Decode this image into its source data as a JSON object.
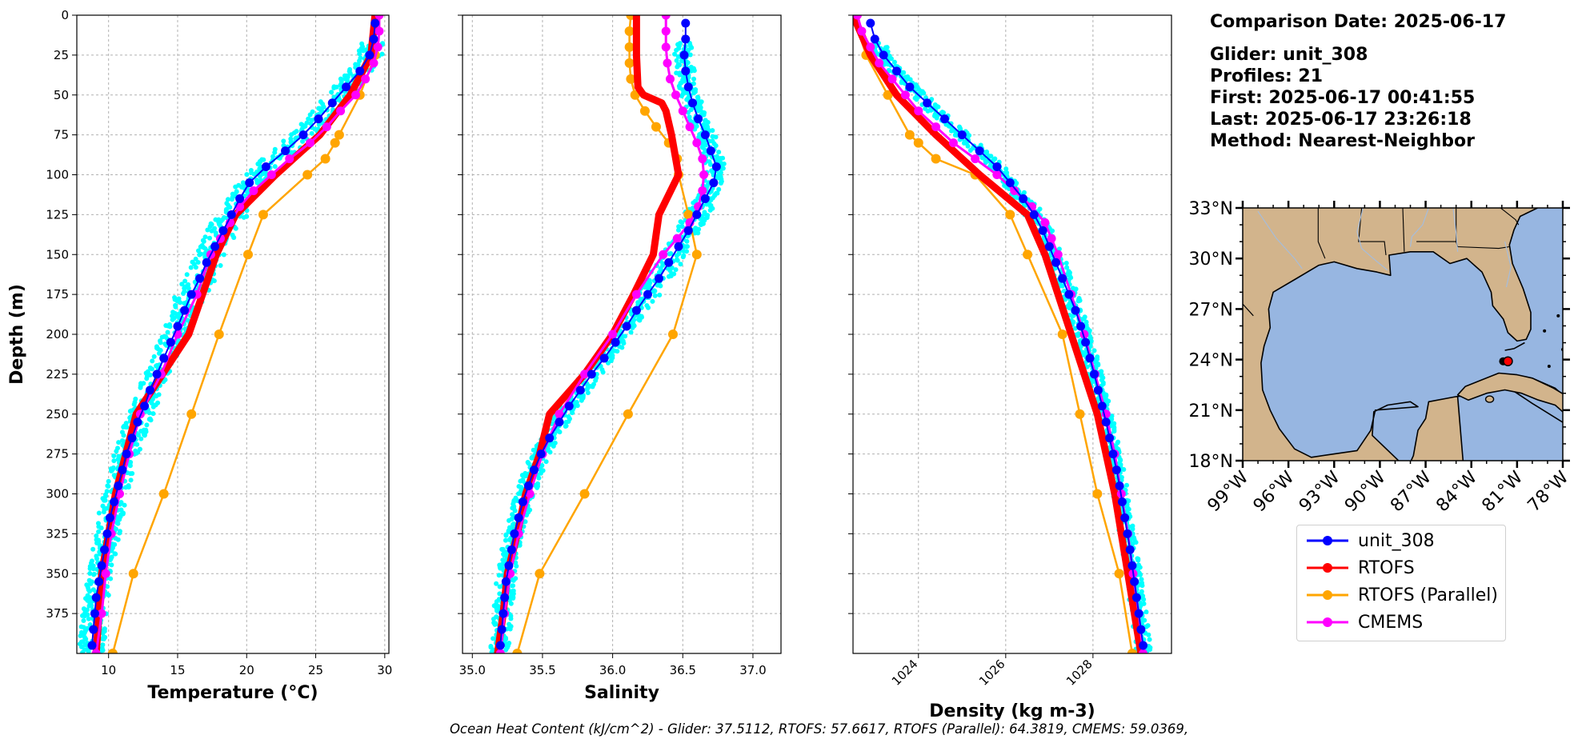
{
  "info": {
    "comparison_date": "Comparison Date: 2025-06-17",
    "glider": "Glider: unit_308",
    "profiles": "Profiles: 21",
    "first": "First: 2025-06-17 00:41:55",
    "last": "Last: 2025-06-17 23:26:18",
    "method": "Method: Nearest-Neighbor"
  },
  "footer": "Ocean Heat Content (kJ/cm^2) - Glider: 37.5112,  RTOFS: 57.6617,  RTOFS (Parallel): 64.3819,  CMEMS: 59.0369,",
  "colors": {
    "glider_raw": "#00ffff",
    "glider": "#0000ff",
    "rtofs": "#ff0000",
    "rtofs_parallel": "#ffa500",
    "cmems": "#ff00ff",
    "land": "#d2b48c",
    "ocean": "#97b6e1",
    "station": "#ff0000"
  },
  "legend": [
    {
      "label": "unit_308",
      "color": "#0000ff"
    },
    {
      "label": "RTOFS",
      "color": "#ff0000"
    },
    {
      "label": "RTOFS (Parallel)",
      "color": "#ffa500"
    },
    {
      "label": "CMEMS",
      "color": "#ff00ff"
    }
  ],
  "chart_data": [
    {
      "type": "line",
      "xlabel": "Temperature (°C)",
      "ylabel": "Depth (m)",
      "xlim": [
        7.7,
        30.3
      ],
      "ylim": [
        400,
        0
      ],
      "x_ticks": [
        10,
        15,
        20,
        25,
        30
      ],
      "y_ticks": [
        0,
        25,
        50,
        75,
        100,
        125,
        150,
        175,
        200,
        225,
        250,
        275,
        300,
        325,
        350,
        375
      ],
      "grid": true,
      "series": [
        {
          "name": "unit_308",
          "depth": [
            5,
            15,
            25,
            35,
            45,
            55,
            65,
            75,
            85,
            95,
            105,
            115,
            125,
            135,
            145,
            155,
            165,
            175,
            185,
            195,
            205,
            215,
            225,
            235,
            245,
            255,
            265,
            275,
            285,
            295,
            305,
            315,
            325,
            335,
            345,
            355,
            365,
            375,
            385,
            395
          ],
          "x": [
            29.3,
            29.2,
            28.9,
            28.2,
            27.2,
            26.2,
            25.2,
            24.1,
            22.8,
            21.4,
            20.2,
            19.5,
            18.9,
            18.3,
            17.7,
            17.1,
            16.6,
            16.0,
            15.5,
            15.0,
            14.5,
            14.0,
            13.5,
            13.0,
            12.6,
            12.1,
            11.7,
            11.3,
            11.0,
            10.7,
            10.4,
            10.1,
            9.9,
            9.7,
            9.5,
            9.3,
            9.1,
            9.0,
            8.9,
            8.8
          ]
        },
        {
          "name": "RTOFS",
          "depth": [
            0,
            25,
            50,
            75,
            100,
            125,
            150,
            200,
            250,
            300,
            350,
            400
          ],
          "x": [
            29.3,
            29.0,
            27.5,
            25.3,
            22.1,
            19.2,
            17.8,
            15.8,
            12.0,
            10.5,
            9.5,
            9.1
          ]
        },
        {
          "name": "RTOFS (Parallel)",
          "depth": [
            0,
            25,
            50,
            75,
            80,
            90,
            100,
            125,
            150,
            200,
            250,
            300,
            350,
            400
          ],
          "x": [
            29.4,
            29.3,
            28.2,
            26.7,
            26.4,
            25.7,
            24.4,
            21.2,
            20.1,
            18.0,
            16.0,
            14.0,
            11.8,
            10.3
          ]
        },
        {
          "name": "CMEMS",
          "depth": [
            0,
            10,
            20,
            30,
            40,
            50,
            60,
            70,
            80,
            90,
            100,
            110,
            120,
            130,
            140,
            150,
            175,
            200,
            225,
            250,
            275,
            300,
            325,
            350,
            375,
            400
          ],
          "x": [
            29.6,
            29.6,
            29.5,
            29.2,
            28.6,
            27.9,
            26.8,
            25.8,
            24.6,
            23.1,
            21.8,
            20.5,
            19.5,
            18.8,
            18.1,
            17.4,
            16.4,
            15.0,
            13.8,
            12.3,
            11.5,
            10.8,
            10.2,
            9.8,
            9.5,
            9.1
          ]
        }
      ]
    },
    {
      "type": "line",
      "xlabel": "Salinity",
      "ylim": [
        400,
        0
      ],
      "xlim": [
        34.93,
        37.2
      ],
      "x_ticks": [
        35.0,
        35.5,
        36.0,
        36.5,
        37.0
      ],
      "grid": true,
      "series": [
        {
          "name": "unit_308",
          "depth": [
            5,
            15,
            25,
            35,
            45,
            55,
            65,
            75,
            85,
            95,
            105,
            115,
            125,
            135,
            145,
            155,
            165,
            175,
            185,
            195,
            205,
            215,
            225,
            235,
            245,
            255,
            265,
            275,
            285,
            295,
            305,
            315,
            325,
            335,
            345,
            355,
            365,
            375,
            385,
            395
          ],
          "x": [
            36.52,
            36.52,
            36.51,
            36.52,
            36.54,
            36.57,
            36.61,
            36.66,
            36.7,
            36.74,
            36.72,
            36.66,
            36.6,
            36.54,
            36.47,
            36.4,
            36.33,
            36.25,
            36.17,
            36.1,
            36.02,
            35.94,
            35.85,
            35.77,
            35.69,
            35.62,
            35.55,
            35.49,
            35.44,
            35.4,
            35.36,
            35.33,
            35.3,
            35.28,
            35.26,
            35.24,
            35.23,
            35.22,
            35.21,
            35.2
          ]
        },
        {
          "name": "RTOFS",
          "depth": [
            0,
            10,
            25,
            45,
            50,
            55,
            60,
            75,
            100,
            125,
            150,
            175,
            200,
            225,
            250,
            275,
            300,
            325,
            350,
            375,
            400
          ],
          "x": [
            36.17,
            36.17,
            36.17,
            36.18,
            36.22,
            36.35,
            36.38,
            36.42,
            36.47,
            36.33,
            36.29,
            36.15,
            36.0,
            35.8,
            35.55,
            35.48,
            35.38,
            35.32,
            35.25,
            35.22,
            35.18
          ]
        },
        {
          "name": "RTOFS (Parallel)",
          "depth": [
            0,
            10,
            20,
            30,
            40,
            50,
            60,
            70,
            80,
            90,
            100,
            125,
            150,
            200,
            250,
            300,
            350,
            400
          ],
          "x": [
            36.13,
            36.12,
            36.12,
            36.12,
            36.13,
            36.16,
            36.23,
            36.31,
            36.4,
            36.46,
            36.47,
            36.54,
            36.6,
            36.43,
            36.11,
            35.8,
            35.48,
            35.32
          ]
        },
        {
          "name": "CMEMS",
          "depth": [
            0,
            10,
            20,
            30,
            40,
            50,
            60,
            70,
            80,
            90,
            100,
            110,
            120,
            130,
            140,
            150,
            175,
            200,
            225,
            250,
            275,
            300,
            325,
            350,
            375,
            400
          ],
          "x": [
            36.38,
            36.38,
            36.38,
            36.39,
            36.41,
            36.45,
            36.5,
            36.55,
            36.6,
            36.64,
            36.65,
            36.64,
            36.61,
            36.55,
            36.46,
            36.36,
            36.17,
            36.0,
            35.8,
            35.62,
            35.5,
            35.41,
            35.33,
            35.27,
            35.23,
            35.2
          ]
        }
      ]
    },
    {
      "type": "line",
      "xlabel": "Density (kg m-3)",
      "ylim": [
        400,
        0
      ],
      "xlim": [
        1022.5,
        1029.8
      ],
      "x_ticks": [
        1024,
        1026,
        1028
      ],
      "grid": true,
      "series": [
        {
          "name": "unit_308",
          "depth": [
            5,
            15,
            25,
            35,
            45,
            55,
            65,
            75,
            85,
            95,
            105,
            115,
            125,
            135,
            145,
            155,
            165,
            175,
            185,
            195,
            205,
            215,
            225,
            235,
            245,
            255,
            265,
            275,
            285,
            295,
            305,
            315,
            325,
            335,
            345,
            355,
            365,
            375,
            385,
            395
          ],
          "x": [
            1022.9,
            1023.0,
            1023.2,
            1023.5,
            1023.8,
            1024.2,
            1024.6,
            1025.0,
            1025.4,
            1025.8,
            1026.1,
            1026.4,
            1026.65,
            1026.85,
            1027.0,
            1027.15,
            1027.3,
            1027.45,
            1027.6,
            1027.72,
            1027.83,
            1027.93,
            1028.03,
            1028.12,
            1028.21,
            1028.3,
            1028.38,
            1028.46,
            1028.54,
            1028.61,
            1028.67,
            1028.73,
            1028.79,
            1028.85,
            1028.9,
            1028.95,
            1029.0,
            1029.05,
            1029.1,
            1029.15
          ]
        },
        {
          "name": "RTOFS",
          "depth": [
            0,
            25,
            50,
            75,
            100,
            125,
            150,
            200,
            250,
            300,
            350,
            400
          ],
          "x": [
            1022.5,
            1022.9,
            1023.5,
            1024.4,
            1025.4,
            1026.5,
            1026.9,
            1027.5,
            1028.1,
            1028.5,
            1028.8,
            1029.1
          ]
        },
        {
          "name": "RTOFS (Parallel)",
          "depth": [
            0,
            25,
            50,
            75,
            80,
            90,
            100,
            125,
            150,
            200,
            250,
            300,
            350,
            400
          ],
          "x": [
            1022.5,
            1022.8,
            1023.3,
            1023.8,
            1024.0,
            1024.4,
            1025.3,
            1026.1,
            1026.5,
            1027.3,
            1027.7,
            1028.1,
            1028.6,
            1028.9
          ]
        },
        {
          "name": "CMEMS",
          "depth": [
            0,
            10,
            20,
            30,
            40,
            50,
            60,
            70,
            80,
            90,
            100,
            110,
            120,
            130,
            140,
            150,
            175,
            200,
            225,
            250,
            275,
            300,
            325,
            350,
            375,
            400
          ],
          "x": [
            1022.6,
            1022.7,
            1022.9,
            1023.1,
            1023.4,
            1023.7,
            1024.0,
            1024.4,
            1024.8,
            1025.3,
            1025.8,
            1026.2,
            1026.6,
            1026.9,
            1027.05,
            1027.2,
            1027.5,
            1027.8,
            1028.05,
            1028.3,
            1028.5,
            1028.65,
            1028.8,
            1028.92,
            1029.05,
            1029.15
          ]
        }
      ]
    },
    {
      "type": "map",
      "lat_ticks": [
        "33°N",
        "30°N",
        "27°N",
        "24°N",
        "21°N",
        "18°N"
      ],
      "lon_ticks": [
        "99°W",
        "96°W",
        "93°W",
        "90°W",
        "87°W",
        "84°W",
        "81°W",
        "78°W"
      ],
      "extent": {
        "lon": [
          -99,
          -78
        ],
        "lat": [
          18,
          33
        ]
      },
      "glider_position": {
        "lon": -81.6,
        "lat": 23.9
      }
    }
  ]
}
